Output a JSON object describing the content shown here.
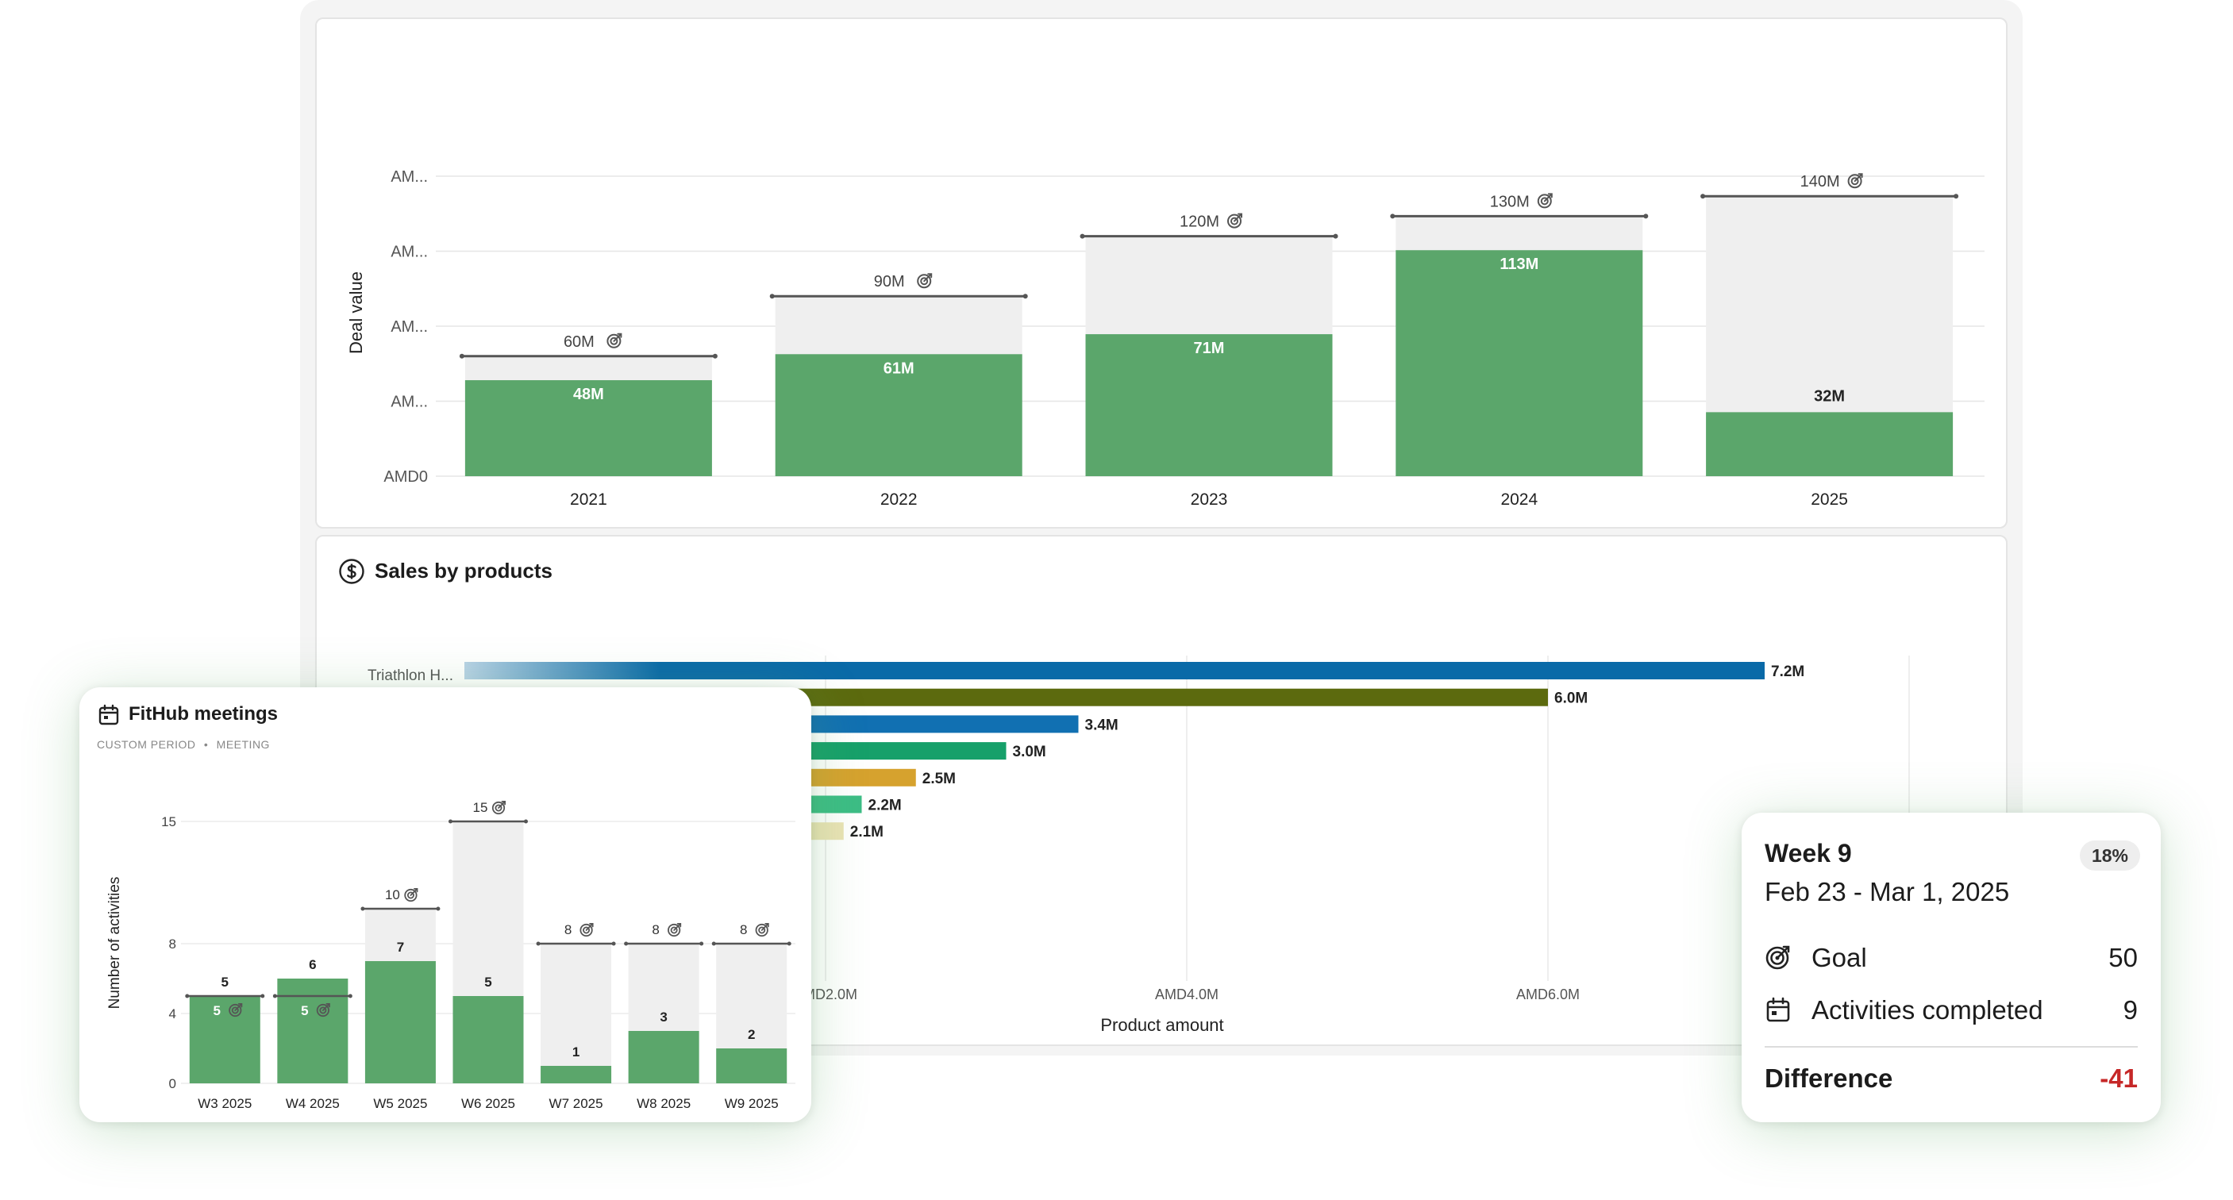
{
  "deal_chart": {
    "ylabel": "Deal value",
    "ytick_labels": [
      "AMD0",
      "AM...",
      "AM...",
      "AM...",
      "AM..."
    ],
    "colors": {
      "actual": "#5ba66b",
      "remaining": "#efefef",
      "goal_line": "#555555"
    },
    "chart_data": {
      "type": "bar",
      "categories": [
        "2021",
        "2022",
        "2023",
        "2024",
        "2025"
      ],
      "series": [
        {
          "values": [
            48,
            61,
            71,
            113,
            32
          ]
        },
        {
          "values": [
            60,
            90,
            120,
            130,
            140
          ]
        }
      ],
      "value_labels": [
        "48M",
        "61M",
        "71M",
        "113M",
        "32M"
      ],
      "goal_labels": [
        "60M",
        "90M",
        "120M",
        "130M",
        "140M"
      ],
      "ylabel": "Deal value",
      "ylim": [
        0,
        150
      ]
    }
  },
  "sales_products": {
    "title": "Sales by products",
    "icon": "dollar-circle-icon",
    "xlabel": "Product amount",
    "xtick_labels": [
      "AMD2.0M",
      "AMD4.0M",
      "AMD6.0M"
    ],
    "visible_category": "Triathlon H...",
    "chart_data": {
      "type": "bar",
      "orientation": "horizontal",
      "values": [
        7.2,
        6.0,
        3.4,
        3.0,
        2.5,
        2.2,
        2.1
      ],
      "value_labels": [
        "7.2M",
        "6.0M",
        "3.4M",
        "3.0M",
        "2.5M",
        "2.2M",
        "2.1M"
      ],
      "colors": [
        "#0a6aa8",
        "#5c6a0e",
        "#1170b2",
        "#16a06a",
        "#d6a22e",
        "#3cbd85",
        "#ebe3b5"
      ],
      "xlabel": "Product amount",
      "xlim": [
        0,
        8
      ]
    }
  },
  "meetings": {
    "title": "FitHub meetings",
    "icon": "calendar-icon",
    "subtitle_period": "CUSTOM PERIOD",
    "subtitle_sep": "•",
    "subtitle_type": "MEETING",
    "ylabel": "Number of activities",
    "ytick_labels": [
      "0",
      "4",
      "8",
      "15"
    ],
    "chart_data": {
      "type": "bar",
      "categories": [
        "W3 2025",
        "W4 2025",
        "W5 2025",
        "W6 2025",
        "W7 2025",
        "W8 2025",
        "W9 2025"
      ],
      "series": [
        {
          "values": [
            5,
            6,
            7,
            5,
            1,
            3,
            2
          ]
        },
        {
          "values": [
            5,
            5,
            10,
            15,
            8,
            8,
            8
          ]
        }
      ],
      "value_labels": [
        "5",
        "6",
        "7",
        "5",
        "1",
        "3",
        "2"
      ],
      "goal_labels": [
        "5",
        "5",
        "10",
        "15",
        "8",
        "8",
        "8"
      ],
      "ylabel": "Number of activities",
      "ylim": [
        0,
        15
      ]
    }
  },
  "week": {
    "title": "Week 9",
    "badge": "18%",
    "date_range": "Feb 23 - Mar 1, 2025",
    "goal_label": "Goal",
    "goal_value": "50",
    "completed_label": "Activities completed",
    "completed_value": "9",
    "difference_label": "Difference",
    "difference_value": "-41",
    "difference_color": "#c62828"
  }
}
